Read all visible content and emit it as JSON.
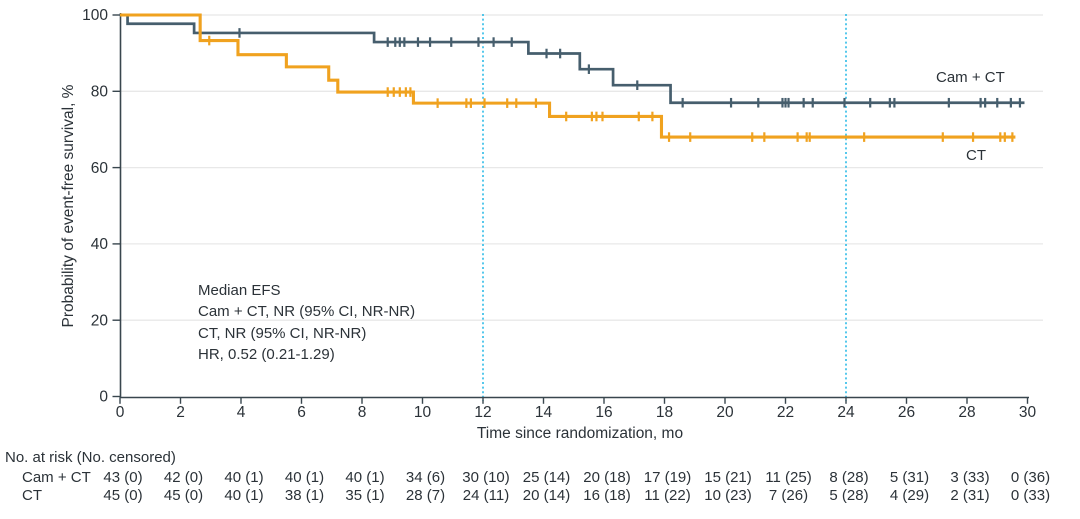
{
  "figure_type": "Kaplan-Meier event-free survival plot",
  "chart_data": {
    "type": "line",
    "subtype": "kaplan-meier-step",
    "xlabel": "Time since randomization, mo",
    "ylabel": "Probability of event-free survival, %",
    "xlim": [
      0,
      30
    ],
    "ylim": [
      0,
      100
    ],
    "xticks": [
      0,
      2,
      4,
      6,
      8,
      10,
      12,
      14,
      16,
      18,
      20,
      22,
      24,
      26,
      28,
      30
    ],
    "yticks": [
      0,
      20,
      40,
      60,
      80,
      100
    ],
    "gridlines_y": [
      20,
      40,
      60,
      80,
      100
    ],
    "grid_on": true,
    "reference_lines_x": [
      12,
      24
    ],
    "colors": {
      "cam_ct": "#465e6d",
      "ct": "#f0a21f",
      "reference_line": "#38bfe8",
      "grid": "#e8e8e8",
      "axis": "#39464e"
    },
    "series": [
      {
        "name": "Cam + CT",
        "color": "#465e6d",
        "steps": [
          [
            0,
            100
          ],
          [
            0.25,
            97.7
          ],
          [
            2.45,
            95.3
          ],
          [
            8.4,
            92.9
          ],
          [
            13.5,
            89.9
          ],
          [
            15.2,
            85.8
          ],
          [
            16.3,
            81.6
          ],
          [
            18.2,
            77.0
          ]
        ],
        "end": 29.9,
        "censors": [
          3.95,
          8.85,
          9.1,
          9.25,
          9.4,
          9.85,
          10.25,
          10.95,
          11.85,
          12.35,
          12.95,
          14.1,
          14.55,
          15.5,
          17.1,
          18.6,
          20.2,
          21.1,
          21.9,
          22.0,
          22.1,
          22.6,
          22.9,
          23.95,
          24.8,
          25.45,
          25.6,
          27.4,
          28.45,
          28.6,
          29.0,
          29.45,
          29.75
        ]
      },
      {
        "name": "CT",
        "color": "#f0a21f",
        "steps": [
          [
            0,
            100
          ],
          [
            2.65,
            93.3
          ],
          [
            3.9,
            89.6
          ],
          [
            5.5,
            86.4
          ],
          [
            6.9,
            82.9
          ],
          [
            7.2,
            79.8
          ],
          [
            9.7,
            76.9
          ],
          [
            14.2,
            73.4
          ],
          [
            17.9,
            68.0
          ]
        ],
        "end": 29.6,
        "censors": [
          2.95,
          8.85,
          9.05,
          9.25,
          9.45,
          9.6,
          10.5,
          11.45,
          11.6,
          12.05,
          12.8,
          13.1,
          13.75,
          14.75,
          15.6,
          15.75,
          15.95,
          17.15,
          17.6,
          18.15,
          18.85,
          20.9,
          21.3,
          22.4,
          22.7,
          22.8,
          24.6,
          27.2,
          28.2,
          29.1,
          29.25,
          29.5
        ]
      }
    ],
    "annotation": {
      "lines": [
        "Median EFS",
        "Cam + CT, NR (95% CI, NR-NR)",
        "CT, NR (95% CI, NR-NR)",
        "HR, 0.52 (0.21-1.29)"
      ]
    }
  },
  "risk_table": {
    "header": "No. at risk (No. censored)",
    "times": [
      0,
      2,
      4,
      6,
      8,
      10,
      12,
      14,
      16,
      18,
      20,
      22,
      24,
      26,
      28,
      30
    ],
    "rows": [
      {
        "label": "Cam + CT",
        "values": [
          "43 (0)",
          "42 (0)",
          "40 (1)",
          "40 (1)",
          "40 (1)",
          "34 (6)",
          "30 (10)",
          "25 (14)",
          "20 (18)",
          "17 (19)",
          "15 (21)",
          "11 (25)",
          "8 (28)",
          "5 (31)",
          "3 (33)",
          "0 (36)"
        ]
      },
      {
        "label": "CT",
        "values": [
          "45 (0)",
          "45 (0)",
          "40 (1)",
          "38 (1)",
          "35 (1)",
          "28 (7)",
          "24 (11)",
          "20 (14)",
          "16 (18)",
          "11 (22)",
          "10 (23)",
          "7 (26)",
          "5 (28)",
          "4 (29)",
          "2 (31)",
          "0 (33)"
        ]
      }
    ]
  }
}
